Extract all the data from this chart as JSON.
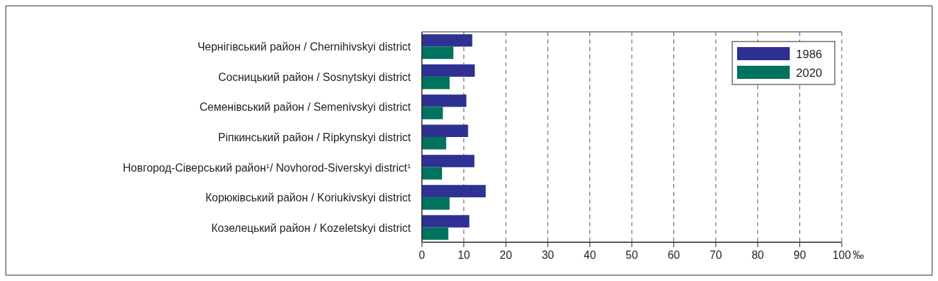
{
  "chart_data": {
    "type": "bar",
    "orientation": "horizontal",
    "categories": [
      "Чернігівський район / Chernihivskyi district",
      "Сосницький район / Sosnytskyi district",
      "Семенівський район / Semenivskyi district",
      "Ріпкинський район / Ripkynskyi district",
      "Новгород-Сіверський район$^{1}$/ Novhorod-Siverskyi district$^{1}$",
      "Корюківський район / Koriukivskyi district",
      "Козелецький район / Kozeletskyi district"
    ],
    "series": [
      {
        "name": "1986",
        "color": "#2e3192",
        "values": [
          12.0,
          12.6,
          10.6,
          11.0,
          12.5,
          15.2,
          11.3
        ]
      },
      {
        "name": "2020",
        "color": "#00735e",
        "values": [
          7.5,
          6.6,
          5.0,
          5.8,
          4.8,
          6.6,
          6.3
        ]
      }
    ],
    "xlim": [
      0,
      100
    ],
    "xticks": [
      0,
      10,
      20,
      30,
      40,
      50,
      60,
      70,
      80,
      90,
      100
    ],
    "xlabel": "‰",
    "grid": "x",
    "legend": "top right"
  }
}
